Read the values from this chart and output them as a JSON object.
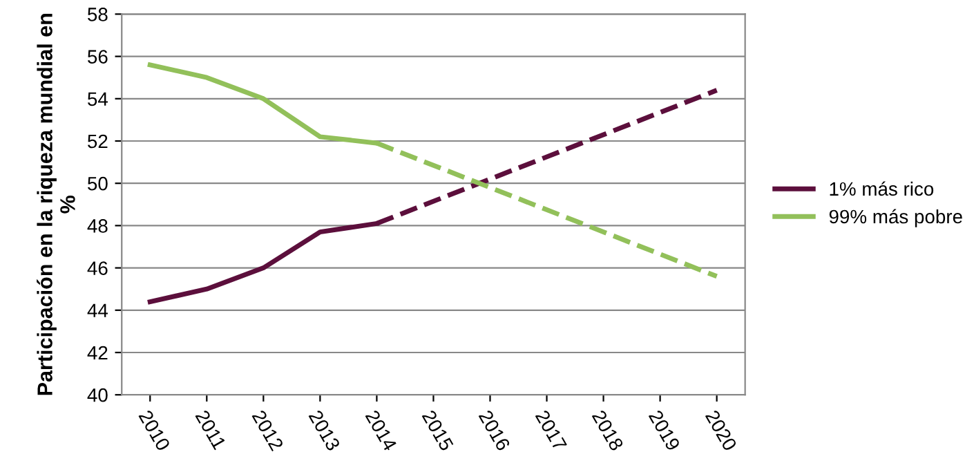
{
  "chart_data": {
    "type": "line",
    "ylabel": "Participación en la riqueza mundial en %",
    "categories": [
      "2010",
      "2011",
      "2012",
      "2013",
      "2014",
      "2015",
      "2016",
      "2017",
      "2018",
      "2019",
      "2020"
    ],
    "series": [
      {
        "name": "1% más rico",
        "color": "#5c0f3c",
        "line_style": "solid",
        "values": [
          44.4,
          45.0,
          46.0,
          47.7,
          48.1,
          null,
          null,
          null,
          null,
          null,
          null
        ]
      },
      {
        "name": "99% más pobre",
        "color": "#92c05a",
        "line_style": "solid",
        "values": [
          55.6,
          55.0,
          54.0,
          52.2,
          51.9,
          null,
          null,
          null,
          null,
          null,
          null
        ]
      },
      {
        "color": "#5c0f3c",
        "line_style": "dashed",
        "values": [
          null,
          null,
          null,
          null,
          48.1,
          null,
          null,
          null,
          null,
          null,
          54.4
        ]
      },
      {
        "color": "#92c05a",
        "line_style": "dashed",
        "values": [
          null,
          null,
          null,
          null,
          51.9,
          null,
          null,
          null,
          null,
          null,
          45.6
        ]
      }
    ],
    "ylim": [
      40,
      58
    ],
    "yticks": [
      40,
      42,
      44,
      46,
      48,
      50,
      52,
      54,
      56,
      58
    ],
    "grid": "y",
    "legend": "right",
    "marker": "none"
  }
}
